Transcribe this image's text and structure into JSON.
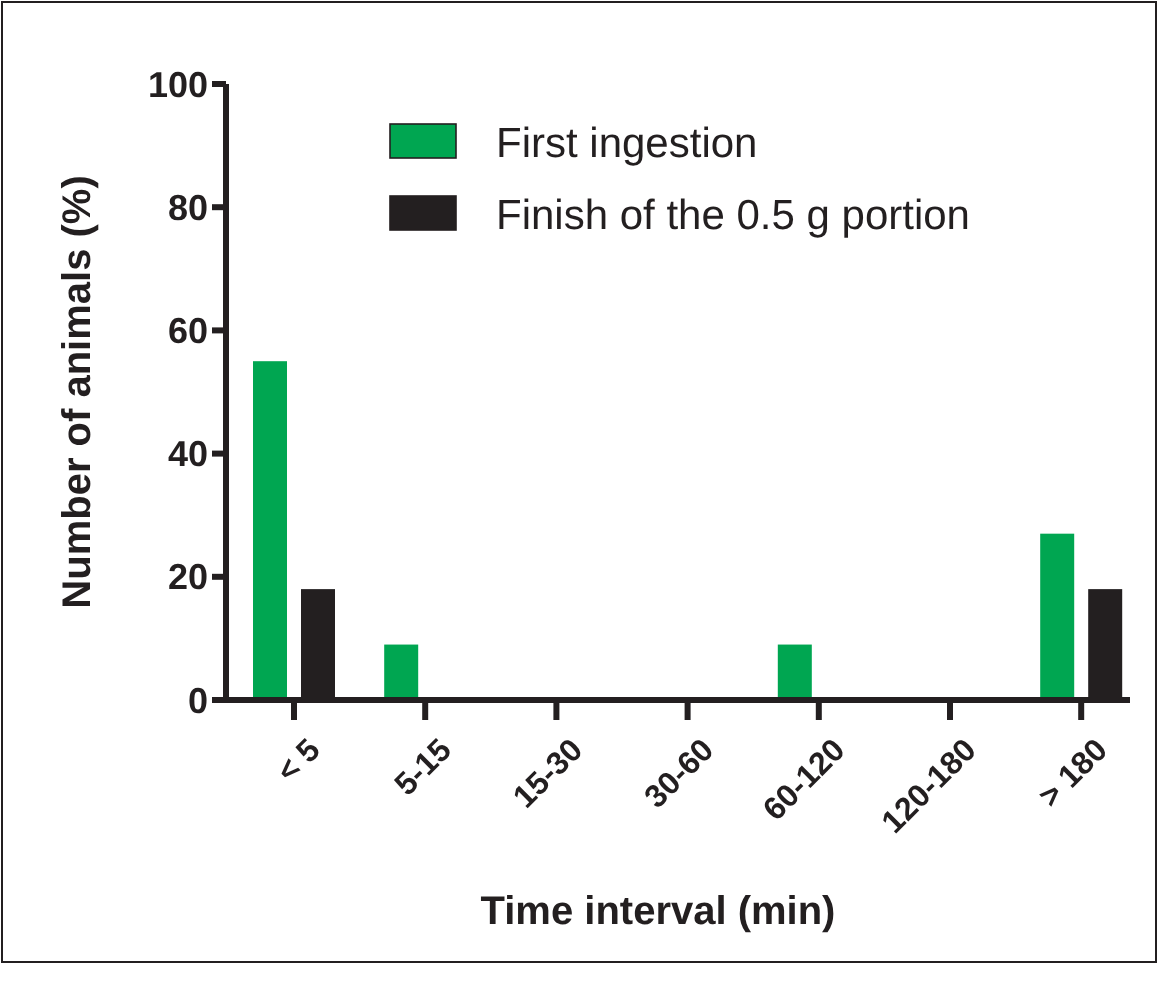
{
  "chart_data": {
    "type": "bar",
    "xlabel": "Time interval (min)",
    "ylabel": "Number of animals (%)",
    "categories": [
      "< 5",
      "5-15",
      "15-30",
      "30-60",
      "60-120",
      "120-180",
      "> 180"
    ],
    "series": [
      {
        "name": "First ingestion",
        "color": "#00a651",
        "values": [
          55,
          9,
          0,
          0,
          9,
          0,
          27
        ]
      },
      {
        "name": "Finish of the 0.5 g portion",
        "color": "#231f20",
        "values": [
          18,
          0,
          0,
          0,
          0,
          0,
          18
        ]
      }
    ],
    "ylim": [
      0,
      100
    ],
    "yticks": [
      0,
      20,
      40,
      60,
      80,
      100
    ],
    "legend": "top right"
  }
}
